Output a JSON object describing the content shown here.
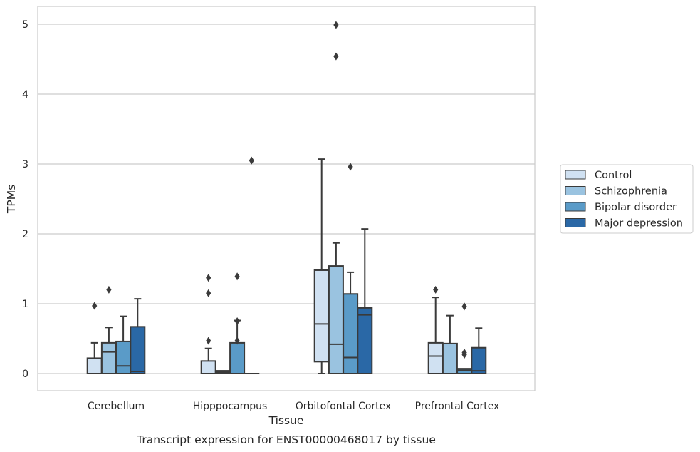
{
  "chart_data": {
    "type": "box",
    "caption": "Transcript expression for ENST00000468017 by tissue",
    "xlabel": "Tissue",
    "ylabel": "TPMs",
    "ylim": [
      -0.25,
      5.25
    ],
    "yticks": [
      0,
      1,
      2,
      3,
      4,
      5
    ],
    "grid": "horizontal",
    "legend_position": "right",
    "categories": [
      "Cerebellum",
      "Hipppocampus",
      "Orbitofontal Cortex",
      "Prefrontal Cortex"
    ],
    "series": [
      {
        "name": "Control",
        "color": "#d0e1f2",
        "boxes": [
          {
            "whislo": 0,
            "q1": 0,
            "med": 0,
            "q3": 0.22,
            "whishi": 0.44,
            "fliers": [
              0.97
            ]
          },
          {
            "whislo": 0,
            "q1": 0,
            "med": 0,
            "q3": 0.18,
            "whishi": 0.36,
            "fliers": [
              0.47,
              1.15,
              1.37
            ]
          },
          {
            "whislo": 0,
            "q1": 0.17,
            "med": 0.71,
            "q3": 1.48,
            "whishi": 3.07,
            "fliers": []
          },
          {
            "whislo": 0,
            "q1": 0,
            "med": 0.25,
            "q3": 0.44,
            "whishi": 1.09,
            "fliers": [
              1.2
            ]
          }
        ]
      },
      {
        "name": "Schizophrenia",
        "color": "#9ac3e0",
        "boxes": [
          {
            "whislo": 0,
            "q1": 0,
            "med": 0.31,
            "q3": 0.44,
            "whishi": 0.66,
            "fliers": [
              1.2
            ]
          },
          {
            "whislo": 0,
            "q1": 0,
            "med": 0.02,
            "q3": 0.04,
            "whishi": 0.04,
            "fliers": []
          },
          {
            "whislo": 0,
            "q1": 0,
            "med": 0.42,
            "q3": 1.54,
            "whishi": 1.87,
            "fliers": [
              4.54,
              4.99
            ]
          },
          {
            "whislo": 0,
            "q1": 0,
            "med": 0,
            "q3": 0.43,
            "whishi": 0.83,
            "fliers": []
          }
        ]
      },
      {
        "name": "Bipolar disorder",
        "color": "#5a9bc8",
        "boxes": [
          {
            "whislo": 0,
            "q1": 0,
            "med": 0.11,
            "q3": 0.46,
            "whishi": 0.82,
            "fliers": []
          },
          {
            "whislo": 0,
            "q1": 0,
            "med": 0,
            "q3": 0.44,
            "whishi": 0.76,
            "fliers": [
              0.47,
              0.75,
              1.39
            ]
          },
          {
            "whislo": 0,
            "q1": 0,
            "med": 0.23,
            "q3": 1.14,
            "whishi": 1.45,
            "fliers": [
              2.96
            ]
          },
          {
            "whislo": 0,
            "q1": 0,
            "med": 0.05,
            "q3": 0.07,
            "whishi": 0.07,
            "fliers": [
              0.27,
              0.3,
              0.96
            ]
          }
        ]
      },
      {
        "name": "Major depression",
        "color": "#2a68a6",
        "boxes": [
          {
            "whislo": 0,
            "q1": 0,
            "med": 0.03,
            "q3": 0.67,
            "whishi": 1.07,
            "fliers": []
          },
          {
            "whislo": 0,
            "q1": 0,
            "med": 0,
            "q3": 0,
            "whishi": 0,
            "fliers": [
              3.05
            ]
          },
          {
            "whislo": 0,
            "q1": 0,
            "med": 0.84,
            "q3": 0.94,
            "whishi": 2.07,
            "fliers": []
          },
          {
            "whislo": 0,
            "q1": 0,
            "med": 0.04,
            "q3": 0.37,
            "whishi": 0.65,
            "fliers": []
          }
        ]
      }
    ]
  }
}
